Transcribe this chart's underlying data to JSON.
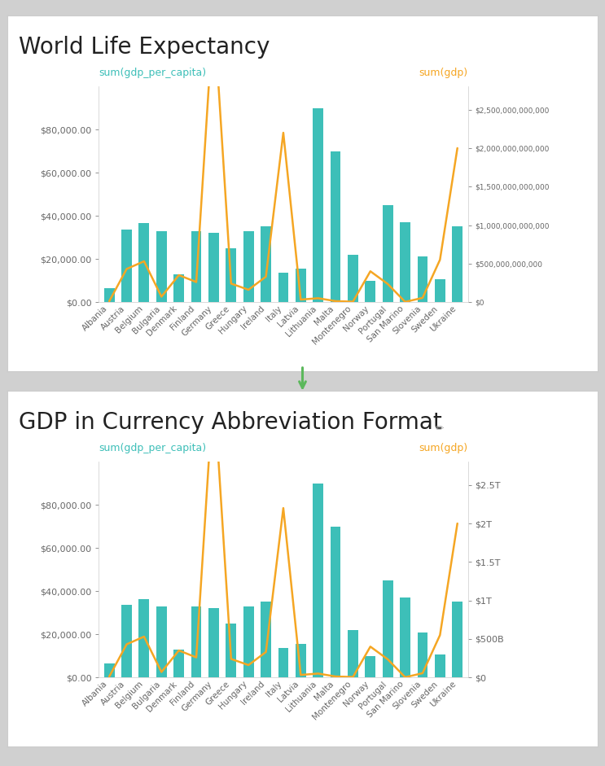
{
  "title1": "World Life Expectancy",
  "title2": "GDP in Currency Abbreviation Format",
  "left_axis_label": "sum(gdp_per_capita)",
  "right_axis_label": "sum(gdp)",
  "bar_color": "#3dbfb8",
  "line_color": "#f5a623",
  "left_label_color": "#3dbfb8",
  "right_label_color": "#f5a623",
  "outer_bg": "#d0d0d0",
  "panel_bg": "#ffffff",
  "panel_border_color": "#cccccc",
  "arrow_color": "#5cb85c",
  "title_color": "#222222",
  "tick_color": "#666666",
  "countries": [
    "Albania",
    "Austria",
    "Belgium",
    "Bulgaria",
    "Denmark",
    "Finland",
    "Germany",
    "Greece",
    "Hungary",
    "Ireland",
    "Italy",
    "Latvia",
    "Lithuania",
    "Malta",
    "Montenegro",
    "Norway",
    "Portugal",
    "San Marino",
    "Slovenia",
    "Sweden",
    "Ukraine"
  ],
  "gdp_per_capita": [
    6500,
    33500,
    36500,
    33000,
    13000,
    33000,
    32000,
    25000,
    33000,
    35000,
    13500,
    15500,
    90000,
    70000,
    22000,
    10000,
    45000,
    37000,
    21000,
    10500,
    35000
  ],
  "gdp": [
    10000000000.0,
    430000000000.0,
    530000000000.0,
    70000000000.0,
    350000000000.0,
    260000000000.0,
    3800000000000.0,
    240000000000.0,
    160000000000.0,
    330000000000.0,
    2200000000000.0,
    32000000000.0,
    50000000000.0,
    12000000000.0,
    5000000000.0,
    400000000000.0,
    235000000000.0,
    1800000000.0,
    55000000000.0,
    550000000000.0,
    2000000000000.0
  ],
  "left_ticks": [
    0,
    20000,
    40000,
    60000,
    80000
  ],
  "left_tick_labels": [
    "$0.00",
    "$20,000.00",
    "$40,000.00",
    "$60,000.00",
    "$80,000.00"
  ],
  "left_ylim": [
    0,
    100000
  ],
  "right_ticks": [
    0,
    500000000000,
    1000000000000,
    1500000000000,
    2000000000000,
    2500000000000
  ],
  "right_tick_labels_full": [
    "$0",
    "$500,000,000,000",
    "$1,000,000,000,000",
    "$1,500,000,000,000",
    "$2,000,000,000,000",
    "$2,500,000,000,000"
  ],
  "right_tick_labels_abbrev": [
    "$0",
    "$500B",
    "$1T",
    "$1.5T",
    "$2T",
    "$2.5T"
  ],
  "right_ylim": [
    0,
    2800000000000
  ],
  "title1_fontsize": 20,
  "title2_fontsize": 20,
  "axis_label_fontsize": 9,
  "tick_fontsize": 8,
  "country_fontsize": 7.5
}
